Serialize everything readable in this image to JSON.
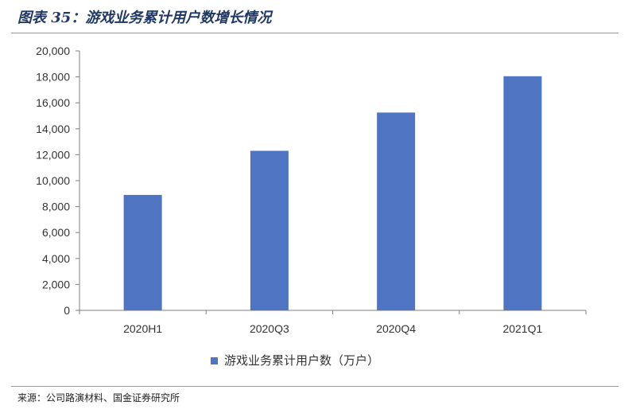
{
  "figure": {
    "title": "图表 35：游戏业务累计用户数增长情况",
    "source": "来源：公司路演材料、国金证券研究所"
  },
  "chart_data": {
    "type": "bar",
    "categories": [
      "2020H1",
      "2020Q3",
      "2020Q4",
      "2021Q1"
    ],
    "series": [
      {
        "name": "游戏业务累计用户数（万户）",
        "values": [
          8900,
          12300,
          15250,
          18050
        ],
        "color": "#4f74c2"
      }
    ],
    "ylim": [
      0,
      20000
    ],
    "yticks": [
      0,
      2000,
      4000,
      6000,
      8000,
      10000,
      12000,
      14000,
      16000,
      18000,
      20000
    ],
    "ytick_labels": [
      "0",
      "2,000",
      "4,000",
      "6,000",
      "8,000",
      "10,000",
      "12,000",
      "14,000",
      "16,000",
      "18,000",
      "20,000"
    ],
    "grid": false,
    "legend": "bottom",
    "xlabel": "",
    "ylabel": ""
  }
}
